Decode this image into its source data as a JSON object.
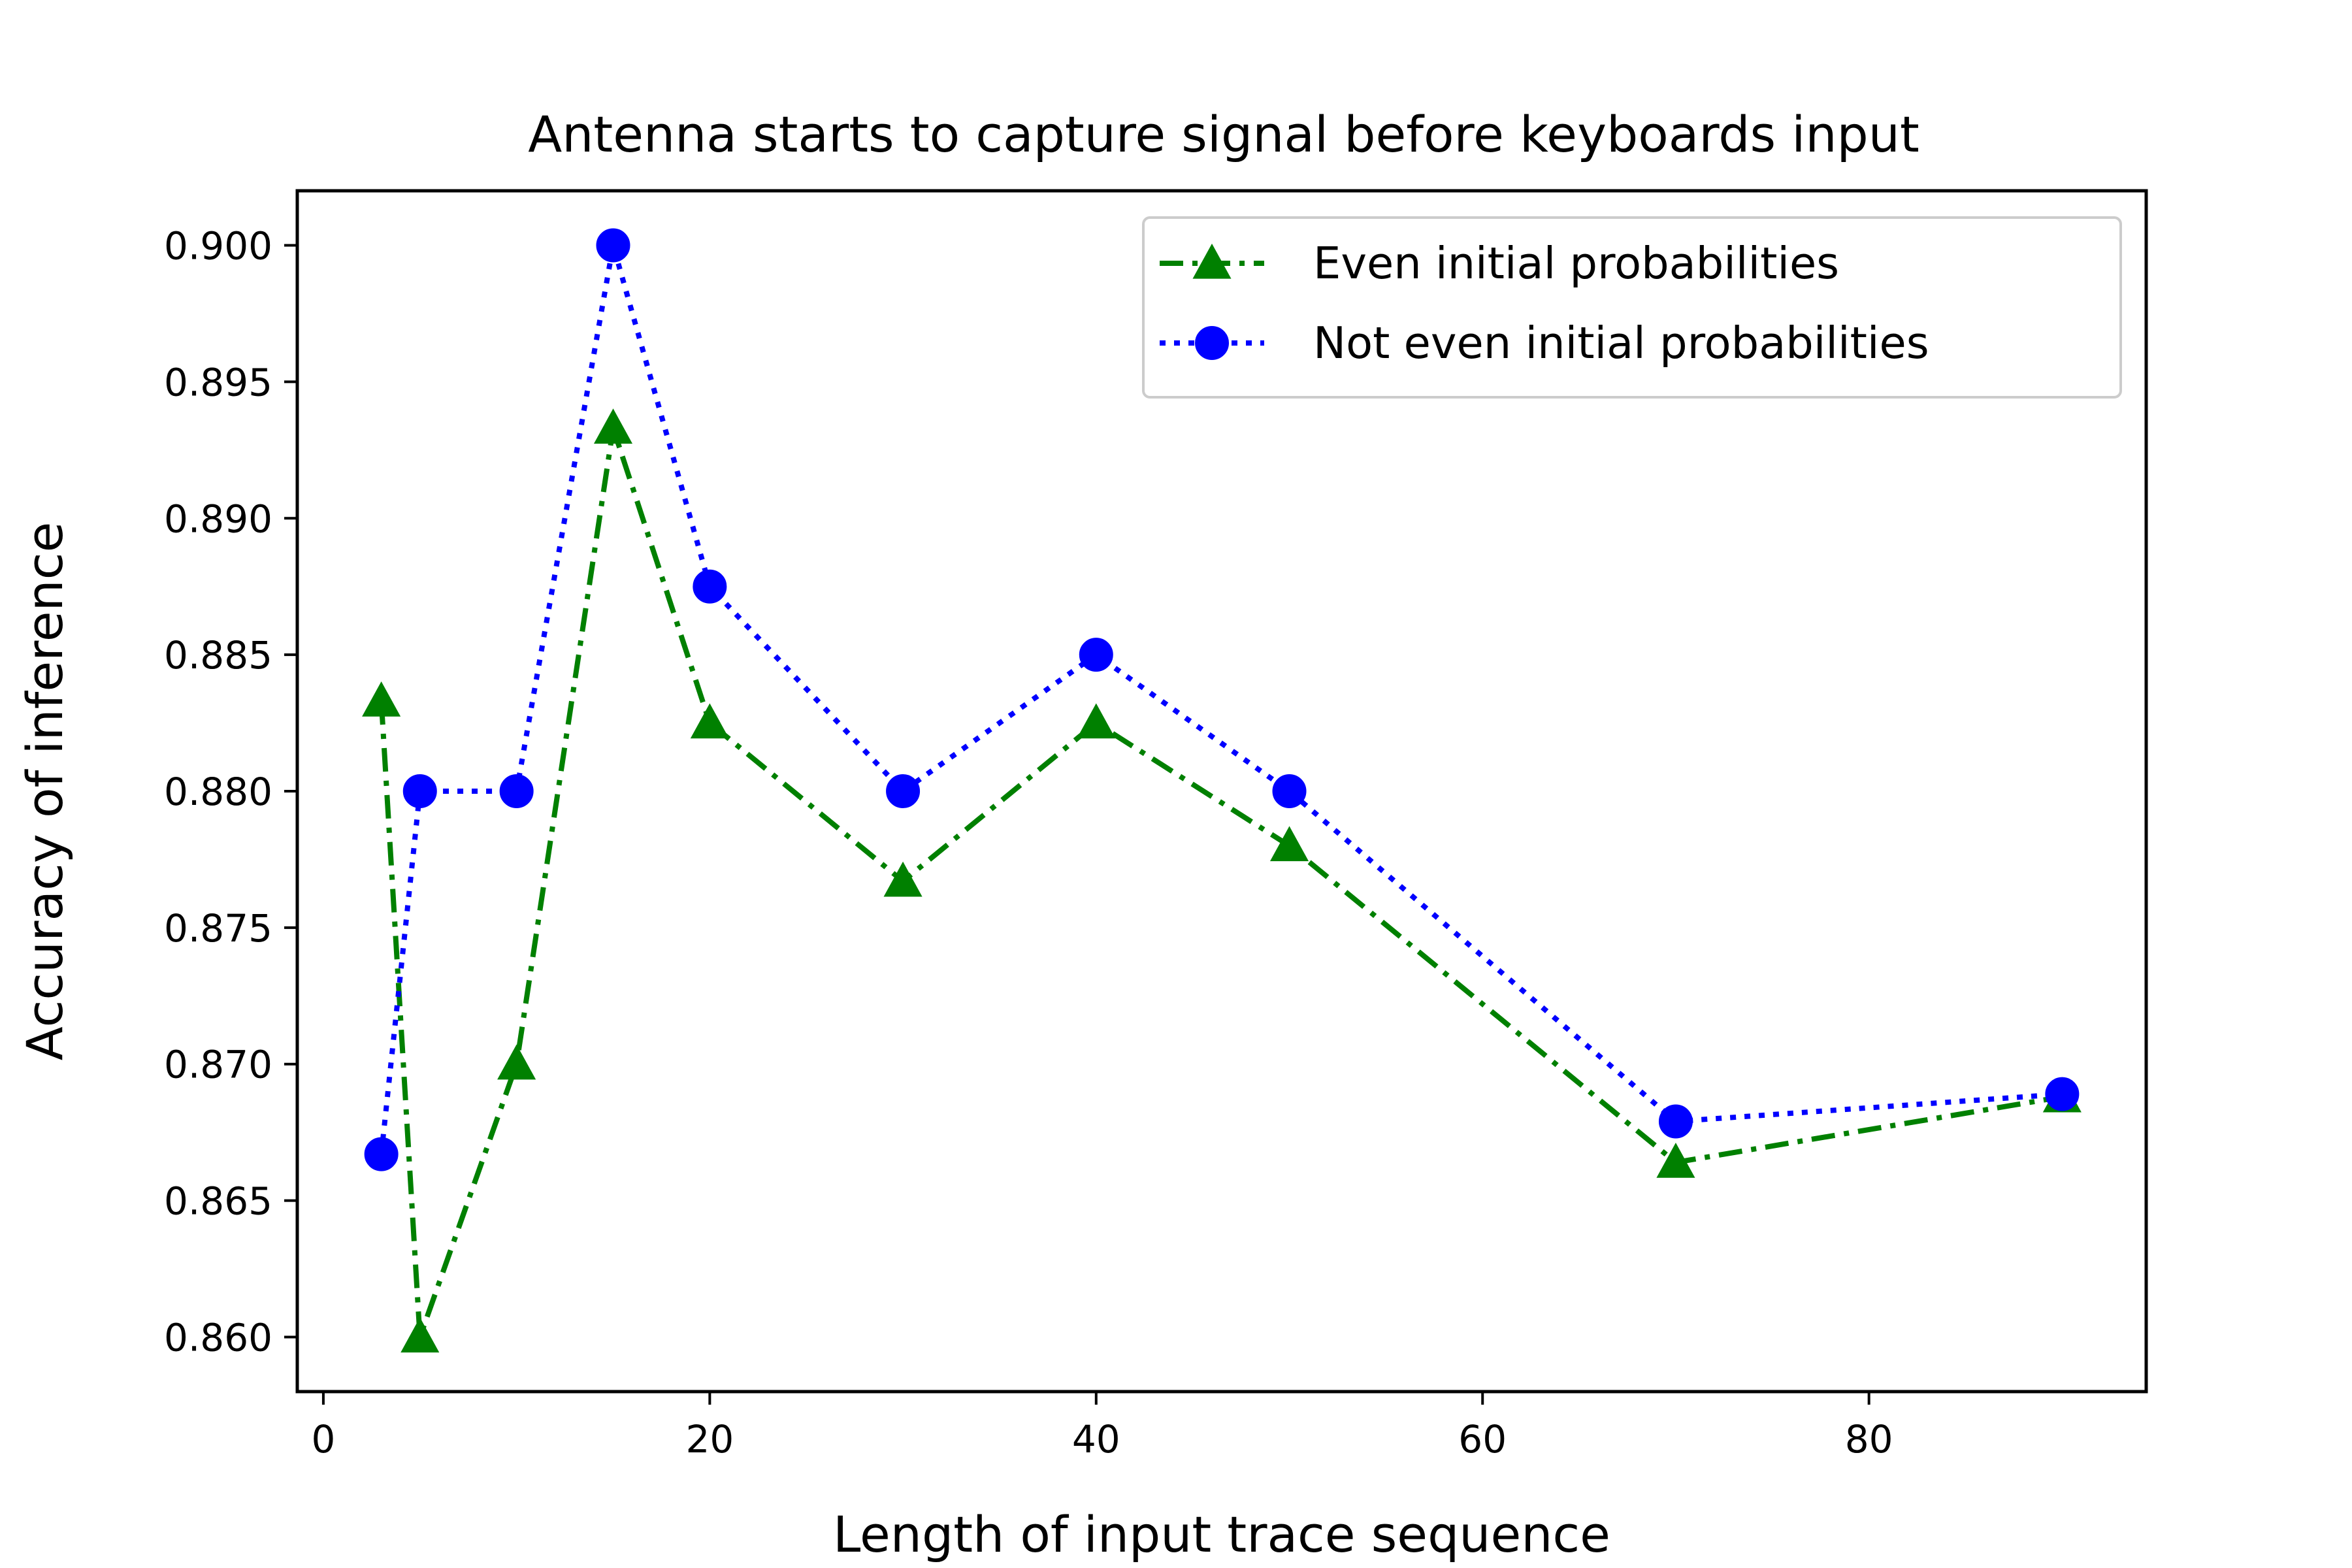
{
  "chart_data": {
    "type": "line",
    "title": "Antenna starts to capture signal before keyboards input",
    "xlabel": "Length of input trace sequence",
    "ylabel": "Accuracy of inference",
    "xlim": [
      -1.35,
      94.35
    ],
    "ylim": [
      0.858,
      0.902
    ],
    "xticks": [
      0,
      20,
      40,
      60,
      80
    ],
    "xtick_labels": [
      "0",
      "20",
      "40",
      "60",
      "80"
    ],
    "yticks": [
      0.86,
      0.865,
      0.87,
      0.875,
      0.88,
      0.885,
      0.89,
      0.895,
      0.9
    ],
    "ytick_labels": [
      "0.860",
      "0.865",
      "0.870",
      "0.875",
      "0.880",
      "0.885",
      "0.890",
      "0.895",
      "0.900"
    ],
    "grid": false,
    "legend_position": "top-right",
    "x": [
      3,
      5,
      10,
      15,
      20,
      30,
      40,
      50,
      70,
      90
    ],
    "series": [
      {
        "name": "Even initial probabilities",
        "color": "#008000",
        "marker": "triangle-up",
        "line_style": "dash-dot",
        "values": [
          0.8833,
          0.86,
          0.87,
          0.8933,
          0.8825,
          0.8767,
          0.8825,
          0.878,
          0.8664,
          0.8688
        ]
      },
      {
        "name": "Not even initial probabilities",
        "color": "#0000ff",
        "marker": "circle",
        "line_style": "dotted",
        "values": [
          0.8667,
          0.88,
          0.88,
          0.9,
          0.8875,
          0.88,
          0.885,
          0.88,
          0.8679,
          0.8689
        ]
      }
    ]
  }
}
